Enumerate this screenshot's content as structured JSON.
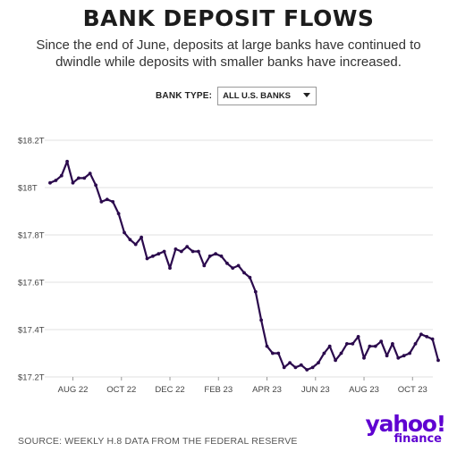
{
  "header": {
    "title": "BANK DEPOSIT FLOWS",
    "subtitle": "Since the end of June, deposits at large banks have continued to dwindle while deposits with smaller banks have increased."
  },
  "filter": {
    "label": "BANK TYPE:",
    "selected": "ALL U.S. BANKS"
  },
  "footer": {
    "source": "SOURCE: WEEKLY H.8 DATA FROM THE FEDERAL RESERVE",
    "logo_main": "yahoo!",
    "logo_sub": "finance"
  },
  "colors": {
    "line": "#2b0a4d",
    "grid": "#e2e2e2",
    "brand": "#5f01d1"
  },
  "chart_data": {
    "type": "line",
    "title": "",
    "xlabel": "",
    "ylabel": "",
    "ylim": [
      17.2,
      18.2
    ],
    "yticks": [
      18.2,
      18.0,
      17.8,
      17.6,
      17.4,
      17.2
    ],
    "ytick_labels": [
      "$18.2T",
      "$18T",
      "$17.8T",
      "$17.6T",
      "$17.4T",
      "$17.2T"
    ],
    "xtick_labels": [
      "AUG 22",
      "OCT 22",
      "DEC 22",
      "FEB 23",
      "APR 23",
      "JUN 23",
      "AUG 23",
      "OCT 23"
    ],
    "xtick_positions": [
      4,
      12.5,
      21,
      29.5,
      38,
      46.5,
      55,
      63.5
    ],
    "xlim": [
      0,
      68
    ],
    "grid": "horizontal",
    "series": [
      {
        "values": [
          18.02,
          18.03,
          18.05,
          18.11,
          18.02,
          18.04,
          18.04,
          18.06,
          18.01,
          17.94,
          17.95,
          17.94,
          17.89,
          17.81,
          17.78,
          17.76,
          17.79,
          17.7,
          17.71,
          17.72,
          17.73,
          17.66,
          17.74,
          17.73,
          17.75,
          17.73,
          17.73,
          17.67,
          17.71,
          17.72,
          17.71,
          17.68,
          17.66,
          17.67,
          17.64,
          17.62,
          17.56,
          17.44,
          17.33,
          17.3,
          17.3,
          17.24,
          17.26,
          17.24,
          17.25,
          17.23,
          17.24,
          17.26,
          17.3,
          17.33,
          17.27,
          17.3,
          17.34,
          17.34,
          17.37,
          17.28,
          17.33,
          17.33,
          17.35,
          17.29,
          17.34,
          17.28,
          17.29,
          17.3,
          17.34,
          17.38,
          17.37,
          17.36,
          17.27
        ]
      }
    ]
  }
}
